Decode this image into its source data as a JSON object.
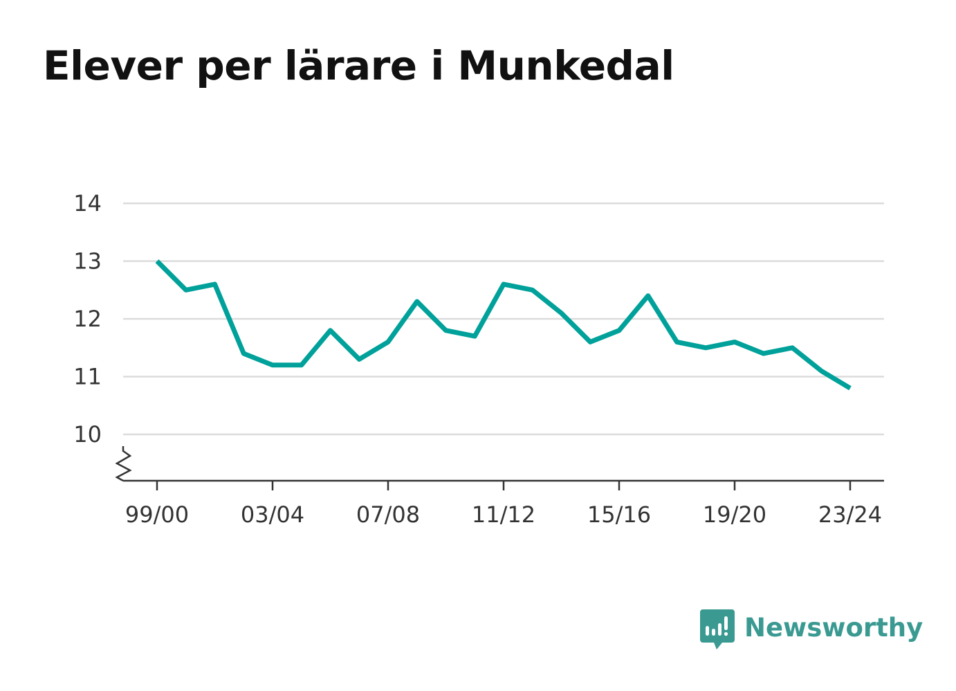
{
  "title": "Elever per lärare i Munkedal",
  "brand": {
    "name": "Newsworthy",
    "icon": "bar-chart-speech-bubble-icon",
    "color": "#3a9a92"
  },
  "chart_data": {
    "type": "line",
    "title": "Elever per lärare i Munkedal",
    "xlabel": "",
    "ylabel": "",
    "x": [
      "99/00",
      "00/01",
      "01/02",
      "02/03",
      "03/04",
      "04/05",
      "05/06",
      "06/07",
      "07/08",
      "08/09",
      "09/10",
      "10/11",
      "11/12",
      "12/13",
      "13/14",
      "14/15",
      "15/16",
      "16/17",
      "17/18",
      "18/19",
      "19/20",
      "20/21",
      "21/22",
      "22/23",
      "23/24"
    ],
    "x_tick_labels": [
      "99/00",
      "03/04",
      "07/08",
      "11/12",
      "15/16",
      "19/20",
      "23/24"
    ],
    "y_ticks": [
      10,
      11,
      12,
      13,
      14
    ],
    "ylim": [
      9.2,
      14
    ],
    "y_axis_break": true,
    "grid": true,
    "series": [
      {
        "color": "#00a19a",
        "values": [
          13.0,
          12.5,
          12.6,
          11.4,
          11.2,
          11.2,
          11.8,
          11.3,
          11.6,
          12.3,
          11.8,
          11.7,
          12.6,
          12.5,
          12.1,
          11.6,
          11.8,
          12.4,
          11.6,
          11.5,
          11.6,
          11.4,
          11.5,
          11.1,
          10.8
        ]
      }
    ]
  }
}
